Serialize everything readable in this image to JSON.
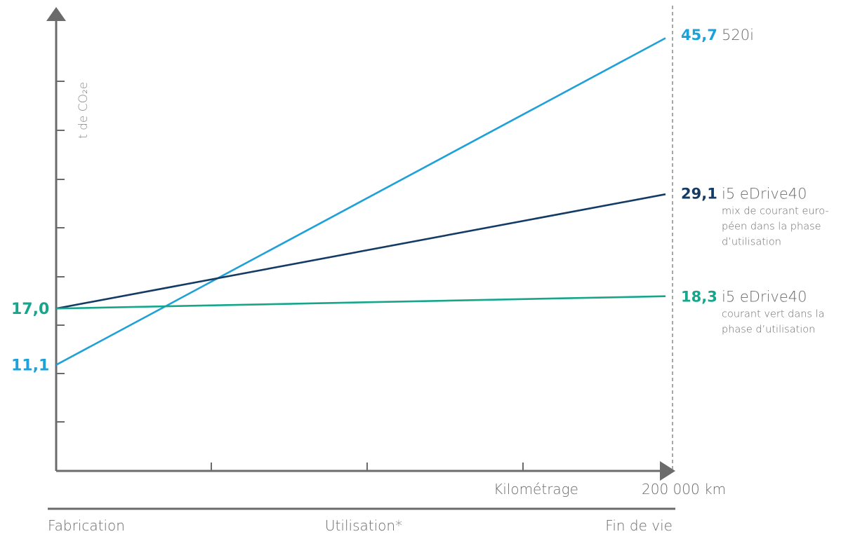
{
  "chart_data": {
    "type": "line",
    "ylabel": "t de CO₂e",
    "xlabel": "Kilométrage",
    "x_end_label": "200 000 km",
    "ylim": [
      0,
      50
    ],
    "xlim": [
      0,
      200000
    ],
    "phases": [
      "Fabrication",
      "Utilisation*",
      "Fin de vie"
    ],
    "series": [
      {
        "id": "s520i",
        "values": [
          11.1,
          45.7
        ],
        "start_label": "11,1",
        "end_value_label": "45,7",
        "name": "520i",
        "notes": [],
        "color": "#1ea0d8"
      },
      {
        "id": "sEu",
        "values": [
          17.0,
          29.1
        ],
        "start_label": "",
        "end_value_label": "29,1",
        "name": "i5 eDrive40",
        "notes": [
          "mix de courant euro-",
          "péen dans la phase",
          "d’utilisation"
        ],
        "color": "#143b64"
      },
      {
        "id": "sGreen",
        "values": [
          17.0,
          18.3
        ],
        "start_label": "17,0",
        "end_value_label": "18,3",
        "name": "i5 eDrive40",
        "notes": [
          "courant vert dans la",
          "phase d’utilisation"
        ],
        "color": "#17a68c"
      }
    ],
    "x": [
      0,
      200000
    ],
    "grid": false,
    "axis_color": "#6b6b6b",
    "label_color": "#6b6b6b"
  }
}
